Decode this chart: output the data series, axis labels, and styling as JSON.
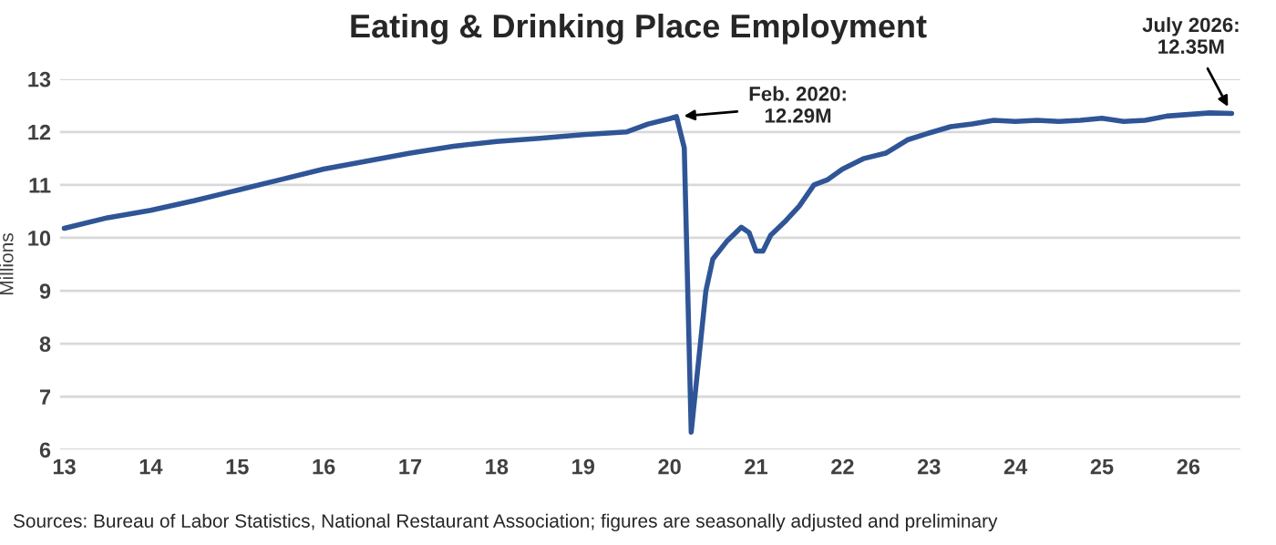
{
  "chart_data": {
    "type": "line",
    "title": "Eating & Drinking Place Employment",
    "ylabel": "Millions",
    "x": [
      13.0,
      13.5,
      14.0,
      14.5,
      15.0,
      15.5,
      16.0,
      16.5,
      17.0,
      17.5,
      18.0,
      18.5,
      19.0,
      19.5,
      19.75,
      20.0,
      20.08,
      20.17,
      20.25,
      20.42,
      20.5,
      20.67,
      20.83,
      20.92,
      21.0,
      21.08,
      21.17,
      21.33,
      21.5,
      21.67,
      21.83,
      22.0,
      22.25,
      22.5,
      22.75,
      23.0,
      23.25,
      23.5,
      23.75,
      24.0,
      24.25,
      24.5,
      24.75,
      25.0,
      25.25,
      25.5,
      25.75,
      26.0,
      26.25,
      26.5
    ],
    "series": [
      {
        "color": "#2f5597",
        "values": [
          10.18,
          10.38,
          10.52,
          10.7,
          10.9,
          11.1,
          11.3,
          11.45,
          11.6,
          11.73,
          11.82,
          11.88,
          11.95,
          12.0,
          12.15,
          12.25,
          12.29,
          11.7,
          6.33,
          9.0,
          9.6,
          9.95,
          10.2,
          10.1,
          9.75,
          9.75,
          10.05,
          10.3,
          10.6,
          11.0,
          11.1,
          11.3,
          11.5,
          11.6,
          11.85,
          11.98,
          12.1,
          12.15,
          12.22,
          12.2,
          12.22,
          12.2,
          12.22,
          12.26,
          12.2,
          12.22,
          12.3,
          12.33,
          12.36,
          12.35
        ]
      }
    ],
    "xlim": [
      12.95,
      26.6
    ],
    "xticks": [
      13,
      14,
      15,
      16,
      17,
      18,
      19,
      20,
      21,
      22,
      23,
      24,
      25,
      26
    ],
    "ylim": [
      6,
      13
    ],
    "yticks": [
      6,
      7,
      8,
      9,
      10,
      11,
      12,
      13
    ],
    "grid": "y",
    "legend": false,
    "marker": "none",
    "line_style": "solid",
    "annotations": [
      {
        "text": "Feb. 2020:\n12.29M",
        "x": 20.08,
        "y": 12.29
      },
      {
        "text": "July 2026:\n12.35M",
        "x": 26.5,
        "y": 12.35
      },
      "Sources: Bureau of Labor Statistics, National Restaurant Association; figures are seasonally adjusted and preliminary"
    ]
  }
}
